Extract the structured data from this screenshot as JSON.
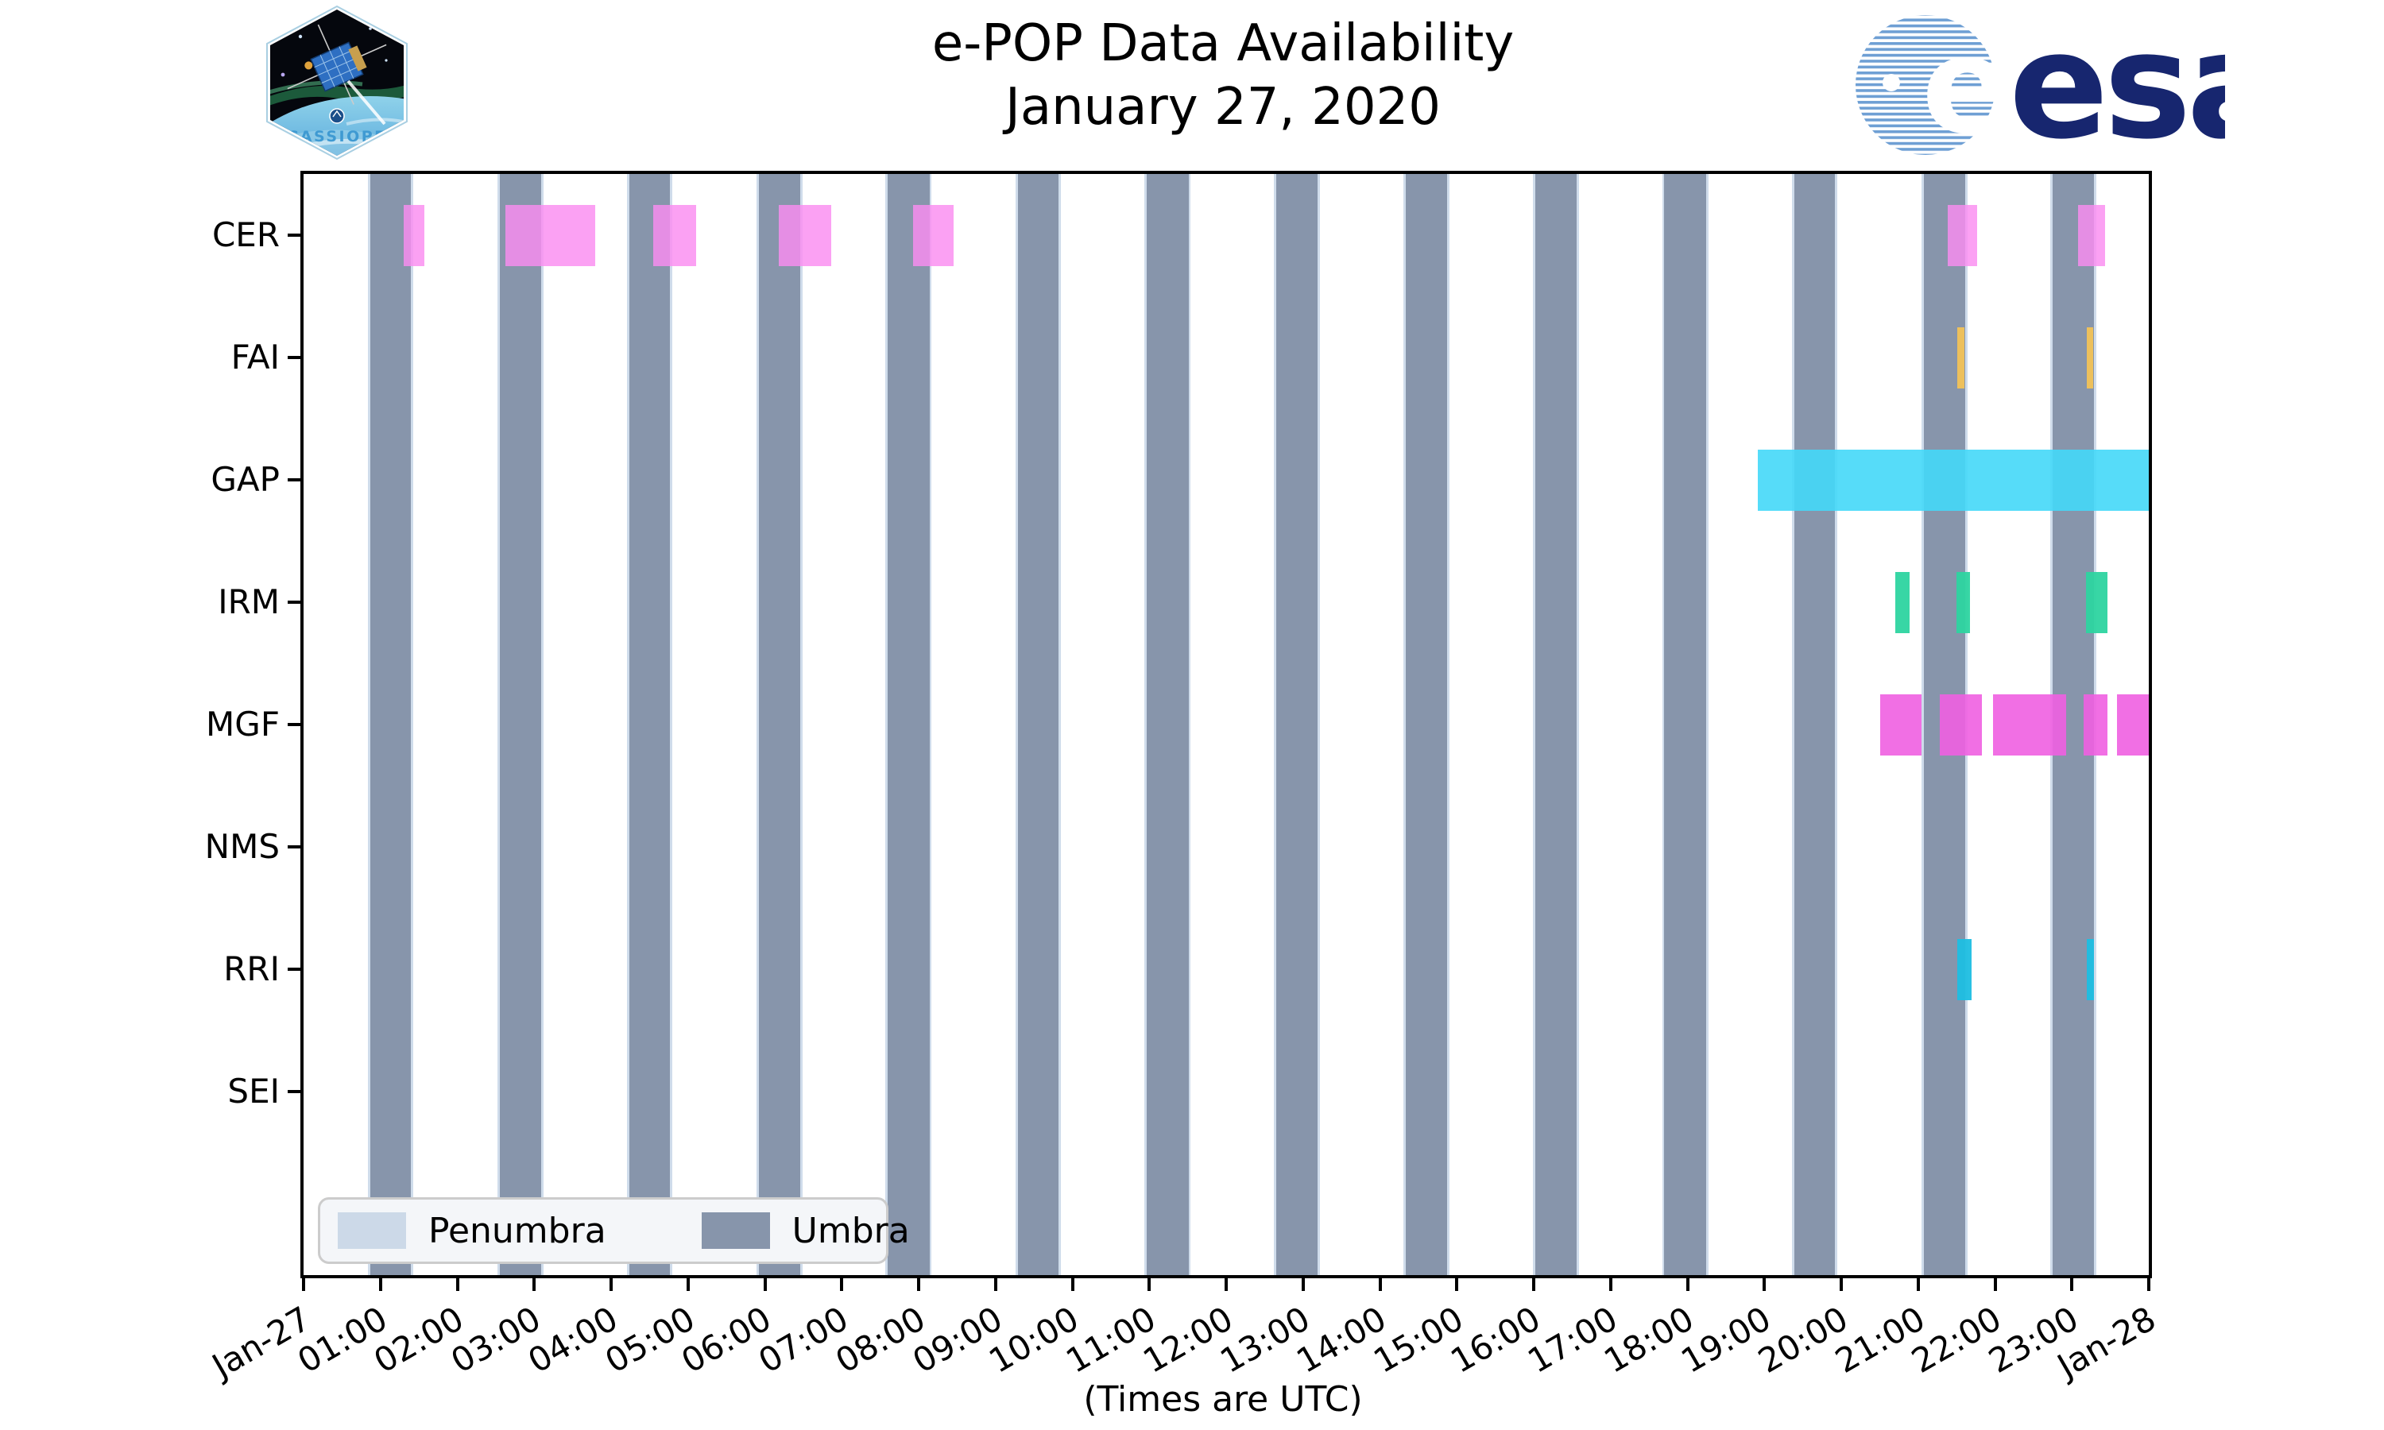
{
  "header": {
    "title_line1": "e-POP Data Availability",
    "title_line2": "January 27, 2020"
  },
  "logos": {
    "cassiope_text": "CASSIOPE",
    "esa_text": "esa"
  },
  "legend": {
    "items": [
      {
        "label": "Penumbra",
        "color": "#ccd9e8"
      },
      {
        "label": "Umbra",
        "color": "#8795ab"
      }
    ]
  },
  "axis_note": "(Times are UTC)",
  "chart_data": {
    "type": "timeline",
    "title": "e-POP Data Availability January 27, 2020",
    "x_axis": {
      "unit": "hours UTC, 2020-01-27 00:00 to 2020-01-28 00:00",
      "xlim_hours": [
        0,
        24
      ],
      "tick_labels": [
        "Jan-27",
        "01:00",
        "02:00",
        "03:00",
        "04:00",
        "05:00",
        "06:00",
        "07:00",
        "08:00",
        "09:00",
        "10:00",
        "11:00",
        "12:00",
        "13:00",
        "14:00",
        "15:00",
        "16:00",
        "17:00",
        "18:00",
        "19:00",
        "20:00",
        "21:00",
        "22:00",
        "23:00",
        "Jan-28"
      ]
    },
    "note": "(Times are UTC)",
    "rows": [
      {
        "label": "CER",
        "color": "rgba(250,140,240,0.82)",
        "segments_h": [
          [
            1.3,
            1.57
          ],
          [
            2.63,
            3.79
          ],
          [
            4.55,
            5.11
          ],
          [
            6.18,
            6.86
          ],
          [
            7.93,
            8.46
          ],
          [
            21.38,
            21.77
          ],
          [
            23.08,
            23.43
          ]
        ]
      },
      {
        "label": "FAI",
        "color": "rgba(245,195,85,0.92)",
        "segments_h": [
          [
            21.51,
            21.6
          ],
          [
            23.19,
            23.28
          ]
        ]
      },
      {
        "label": "GAP",
        "color": "rgba(68,216,248,0.90)",
        "segments_h": [
          [
            18.91,
            24.0
          ]
        ]
      },
      {
        "label": "IRM",
        "color": "rgba(45,212,160,0.95)",
        "segments_h": [
          [
            20.7,
            20.89
          ],
          [
            21.5,
            21.67
          ],
          [
            23.18,
            23.46
          ]
        ]
      },
      {
        "label": "MGF",
        "color": "rgba(240,95,225,0.90)",
        "segments_h": [
          [
            20.51,
            21.04
          ],
          [
            21.28,
            21.83
          ],
          [
            21.97,
            22.93
          ],
          [
            23.15,
            23.46
          ],
          [
            23.59,
            24.0
          ]
        ]
      },
      {
        "label": "NMS",
        "color": "rgba(240,95,225,0.90)",
        "segments_h": []
      },
      {
        "label": "RRI",
        "color": "rgba(30,190,225,0.95)",
        "segments_h": [
          [
            21.51,
            21.7
          ],
          [
            23.19,
            23.29
          ]
        ]
      },
      {
        "label": "SEI",
        "color": "rgba(45,212,160,0.95)",
        "segments_h": []
      }
    ],
    "shading": {
      "umbra": {
        "color": "#8795ab",
        "intervals_h": [
          [
            0.87,
            1.4
          ],
          [
            2.55,
            3.09
          ],
          [
            4.24,
            4.77
          ],
          [
            5.92,
            6.46
          ],
          [
            7.6,
            8.14
          ],
          [
            9.29,
            9.82
          ],
          [
            10.97,
            11.51
          ],
          [
            12.65,
            13.19
          ],
          [
            14.34,
            14.87
          ],
          [
            16.02,
            16.56
          ],
          [
            17.7,
            18.24
          ],
          [
            19.39,
            19.92
          ],
          [
            21.07,
            21.61
          ],
          [
            22.75,
            23.29
          ]
        ]
      },
      "penumbra": {
        "color": "#cfdceb",
        "strip_hours": 0.03
      }
    },
    "legend_entries": [
      "Penumbra",
      "Umbra"
    ]
  }
}
